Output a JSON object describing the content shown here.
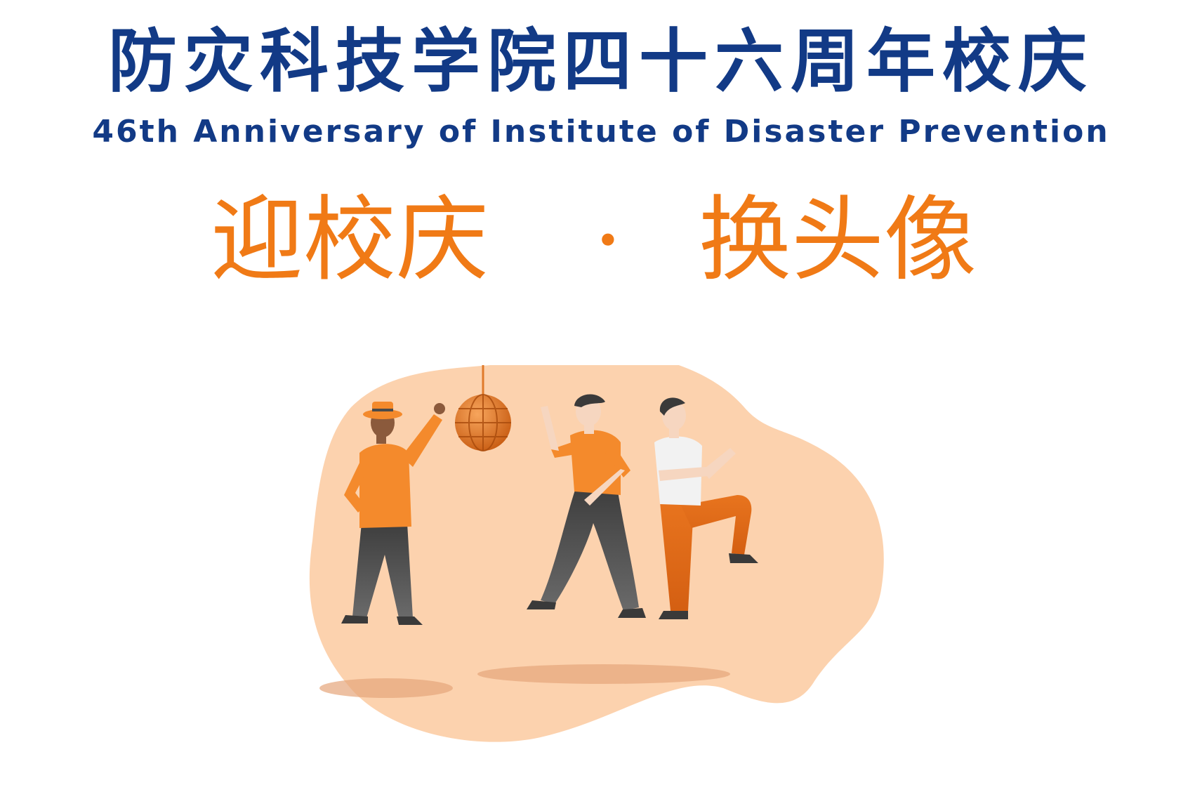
{
  "header": {
    "title_cn": "防灾科技学院四十六周年校庆",
    "title_en": "46th Anniversary of Institute of Disaster Prevention"
  },
  "slogan": {
    "left": "迎校庆",
    "separator": "·",
    "right": "换头像"
  },
  "illustration": {
    "subject": "three people dancing under a disco ball",
    "colors": {
      "blob": "#fbd1ae",
      "orange": "#f48a2c",
      "dark_orange": "#d9661a",
      "pants_dark": "#4b4b4b",
      "shirt_white": "#f2f2f2",
      "skin_dark": "#8b5a3c",
      "skin_light": "#f6d6c0"
    }
  }
}
